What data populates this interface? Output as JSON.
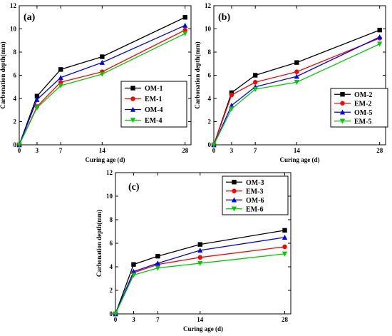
{
  "colors": {
    "OM": "#000000",
    "EM": "#ff0000",
    "OM2": "#0000ff",
    "EM2": "#00cc00"
  },
  "chart_data": [
    {
      "type": "line",
      "panel": "(a)",
      "xlabel": "Curing age (d)",
      "ylabel": "Carbonation depth(mm)",
      "x": [
        0,
        3,
        7,
        14,
        28
      ],
      "xticks": [
        0,
        3,
        7,
        14,
        28
      ],
      "yticks": [
        0,
        2,
        4,
        6,
        8,
        10,
        12
      ],
      "xlim": [
        0,
        29
      ],
      "ylim": [
        0,
        12
      ],
      "legend_position": "right",
      "series": [
        {
          "name": "OM-1",
          "color": "#000000",
          "marker": "square",
          "values": [
            0,
            4.2,
            6.5,
            7.6,
            11.0
          ]
        },
        {
          "name": "EM-1",
          "color": "#ff0000",
          "marker": "circle",
          "values": [
            0,
            3.3,
            5.4,
            6.3,
            9.9
          ]
        },
        {
          "name": "OM-4",
          "color": "#0000ff",
          "marker": "triangle-up",
          "values": [
            0,
            3.9,
            5.8,
            7.1,
            10.3
          ]
        },
        {
          "name": "EM-4",
          "color": "#00cc00",
          "marker": "triangle-down",
          "values": [
            0,
            3.2,
            5.1,
            6.1,
            9.6
          ]
        }
      ]
    },
    {
      "type": "line",
      "panel": "(b)",
      "xlabel": "Curing age (d)",
      "ylabel": "Carbonation depth(mm)",
      "x": [
        0,
        3,
        7,
        14,
        28
      ],
      "xticks": [
        0,
        3,
        7,
        14,
        28
      ],
      "yticks": [
        0,
        2,
        4,
        6,
        8,
        10,
        12
      ],
      "xlim": [
        0,
        29
      ],
      "ylim": [
        0,
        12
      ],
      "legend_position": "right",
      "series": [
        {
          "name": "OM-2",
          "color": "#000000",
          "marker": "square",
          "values": [
            0,
            4.5,
            6.0,
            7.1,
            9.9
          ]
        },
        {
          "name": "EM-2",
          "color": "#ff0000",
          "marker": "circle",
          "values": [
            0,
            4.3,
            5.4,
            6.3,
            9.2
          ]
        },
        {
          "name": "OM-5",
          "color": "#0000ff",
          "marker": "triangle-up",
          "values": [
            0,
            3.4,
            5.0,
            5.9,
            9.3
          ]
        },
        {
          "name": "EM-5",
          "color": "#00cc00",
          "marker": "triangle-down",
          "values": [
            0,
            3.1,
            4.8,
            5.4,
            8.7
          ]
        }
      ]
    },
    {
      "type": "line",
      "panel": "(c)",
      "xlabel": "Curing age (d)",
      "ylabel": "Carbonation depth(mm)",
      "x": [
        0,
        3,
        7,
        14,
        28
      ],
      "xticks": [
        0,
        3,
        7,
        14,
        28
      ],
      "yticks": [
        0,
        2,
        4,
        6,
        8,
        10,
        12
      ],
      "xlim": [
        0,
        29
      ],
      "ylim": [
        0,
        12
      ],
      "legend_position": "top-right",
      "series": [
        {
          "name": "OM-3",
          "color": "#000000",
          "marker": "square",
          "values": [
            0,
            4.2,
            4.9,
            5.9,
            7.1
          ]
        },
        {
          "name": "EM-3",
          "color": "#ff0000",
          "marker": "circle",
          "values": [
            0,
            3.5,
            4.2,
            4.8,
            5.7
          ]
        },
        {
          "name": "OM-6",
          "color": "#0000ff",
          "marker": "triangle-up",
          "values": [
            0,
            3.6,
            4.3,
            5.4,
            6.5
          ]
        },
        {
          "name": "EM-6",
          "color": "#00cc00",
          "marker": "triangle-down",
          "values": [
            0,
            3.3,
            3.9,
            4.3,
            5.1
          ]
        }
      ]
    }
  ]
}
